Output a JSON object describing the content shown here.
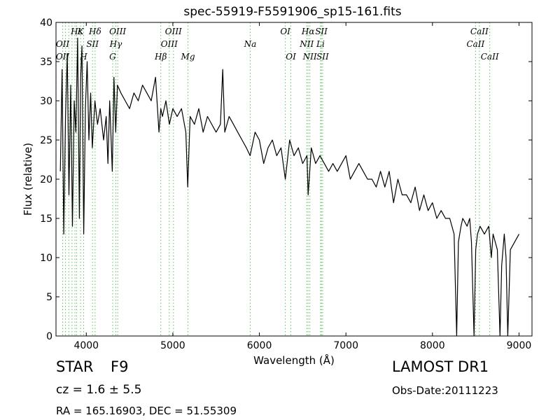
{
  "chart_data": {
    "type": "line",
    "title": "spec-55919-F5591906_sp15-161.fits",
    "xlabel": "Wavelength (Å)",
    "ylabel": "Flux (relative)",
    "xlim": [
      3650,
      9150
    ],
    "ylim": [
      0,
      40
    ],
    "xticks": [
      4000,
      5000,
      6000,
      7000,
      8000,
      9000
    ],
    "yticks": [
      0,
      5,
      10,
      15,
      20,
      25,
      30,
      35,
      40
    ],
    "grid": false,
    "legend": "none",
    "colors": {
      "spectrum": "#000000",
      "lines": "#5fbf5f"
    },
    "series": [
      {
        "x": [
          3700,
          3720,
          3740,
          3760,
          3780,
          3800,
          3820,
          3840,
          3860,
          3880,
          3900,
          3920,
          3935,
          3950,
          3970,
          3990,
          4010,
          4030,
          4050,
          4070,
          4100,
          4130,
          4160,
          4200,
          4230,
          4250,
          4270,
          4300,
          4320,
          4340,
          4360,
          4400,
          4450,
          4500,
          4550,
          4600,
          4650,
          4700,
          4750,
          4800,
          4840,
          4861,
          4880,
          4920,
          4960,
          5000,
          5050,
          5100,
          5150,
          5172,
          5200,
          5250,
          5300,
          5350,
          5400,
          5450,
          5500,
          5550,
          5577,
          5600,
          5650,
          5700,
          5750,
          5800,
          5850,
          5893,
          5950,
          6000,
          6050,
          6100,
          6150,
          6200,
          6250,
          6300,
          6350,
          6400,
          6450,
          6500,
          6550,
          6563,
          6600,
          6650,
          6700,
          6750,
          6800,
          6850,
          6900,
          6950,
          7000,
          7050,
          7100,
          7150,
          7200,
          7250,
          7300,
          7350,
          7400,
          7450,
          7500,
          7550,
          7600,
          7650,
          7700,
          7750,
          7800,
          7850,
          7900,
          7950,
          8000,
          8050,
          8100,
          8150,
          8200,
          8250,
          8280,
          8300,
          8330,
          8350,
          8400,
          8430,
          8450,
          8480,
          8500,
          8520,
          8550,
          8600,
          8650,
          8680,
          8700,
          8750,
          8780,
          8800,
          8830,
          8850,
          8870,
          8900,
          8950,
          9000
        ],
        "values": [
          21,
          34,
          13,
          28,
          36,
          18,
          32,
          14,
          30,
          26,
          38,
          15,
          33,
          37,
          13,
          29,
          35,
          25,
          31,
          24,
          30,
          27,
          29,
          25,
          28,
          22,
          30,
          21,
          33,
          26,
          32,
          31,
          30,
          29,
          31,
          30,
          32,
          31,
          30,
          33,
          26,
          29,
          28,
          30,
          27,
          29,
          28,
          29,
          26,
          19,
          28,
          27,
          29,
          26,
          28,
          27,
          26,
          27,
          34,
          26,
          28,
          27,
          26,
          25,
          24,
          23,
          26,
          25,
          22,
          24,
          25,
          23,
          24,
          20,
          25,
          23,
          24,
          22,
          23,
          18,
          24,
          22,
          23,
          22,
          21,
          22,
          21,
          22,
          23,
          20,
          21,
          22,
          21,
          20,
          20,
          19,
          21,
          19,
          21,
          17,
          20,
          18,
          18,
          17,
          19,
          16,
          18,
          16,
          17,
          15,
          16,
          15,
          15,
          13,
          0,
          12,
          14,
          15,
          14,
          15,
          12,
          0,
          11,
          13,
          14,
          13,
          14,
          10,
          13,
          11,
          0,
          9,
          13,
          10,
          0,
          11,
          12,
          13
        ]
      }
    ],
    "line_markers": [
      {
        "wl": 3727,
        "label": "OII",
        "row": 1
      },
      {
        "wl": 3727,
        "label": "OII",
        "row": 2
      },
      {
        "wl": 3760,
        "label": "",
        "row": 1
      },
      {
        "wl": 3798,
        "label": "",
        "row": 1
      },
      {
        "wl": 3835,
        "label": "",
        "row": 1
      },
      {
        "wl": 3869,
        "label": "",
        "row": 2
      },
      {
        "wl": 3889,
        "label": "Hε",
        "row": 0
      },
      {
        "wl": 3934,
        "label": "K",
        "row": 0
      },
      {
        "wl": 3969,
        "label": "H",
        "row": 2
      },
      {
        "wl": 4072,
        "label": "SII",
        "row": 1
      },
      {
        "wl": 4102,
        "label": "Hδ",
        "row": 0
      },
      {
        "wl": 4305,
        "label": "G",
        "row": 2
      },
      {
        "wl": 4341,
        "label": "Hγ",
        "row": 1
      },
      {
        "wl": 4363,
        "label": "OIII",
        "row": 0
      },
      {
        "wl": 4861,
        "label": "Hβ",
        "row": 2
      },
      {
        "wl": 4959,
        "label": "OIII",
        "row": 1
      },
      {
        "wl": 5007,
        "label": "OIII",
        "row": 0
      },
      {
        "wl": 5175,
        "label": "Mg",
        "row": 2
      },
      {
        "wl": 5894,
        "label": "Na",
        "row": 1
      },
      {
        "wl": 6300,
        "label": "OI",
        "row": 0
      },
      {
        "wl": 6364,
        "label": "OI",
        "row": 2
      },
      {
        "wl": 6548,
        "label": "NII",
        "row": 1
      },
      {
        "wl": 6563,
        "label": "Hα",
        "row": 0
      },
      {
        "wl": 6583,
        "label": "NII",
        "row": 2
      },
      {
        "wl": 6707,
        "label": "Li",
        "row": 1
      },
      {
        "wl": 6716,
        "label": "SII",
        "row": 0
      },
      {
        "wl": 6731,
        "label": "SII",
        "row": 2
      },
      {
        "wl": 8498,
        "label": "CaII",
        "row": 1
      },
      {
        "wl": 8542,
        "label": "CaII",
        "row": 0
      },
      {
        "wl": 8662,
        "label": "CaII",
        "row": 2
      }
    ]
  },
  "info": {
    "type": "STAR",
    "subclass": "F9",
    "cz": "cz = 1.6 ± 5.5",
    "radec": "RA = 165.16903, DEC = 51.55309",
    "survey": "LAMOST DR1",
    "obsdate": "Obs-Date:20111223"
  }
}
